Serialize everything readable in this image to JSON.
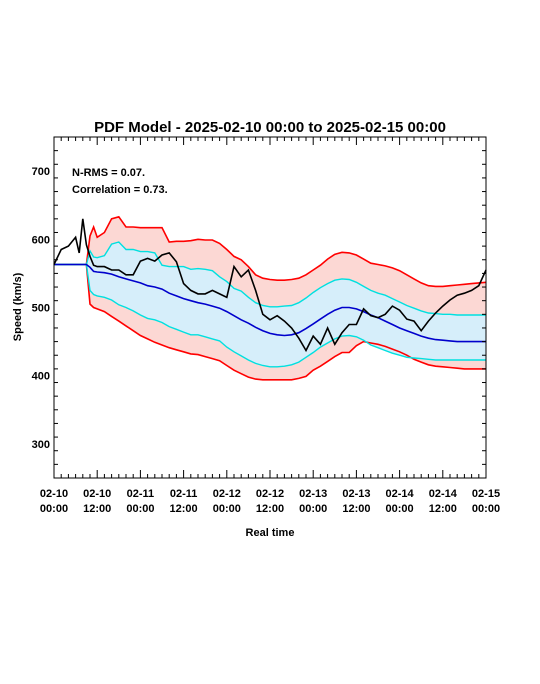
{
  "chart_data": {
    "type": "line",
    "title": "PDF Model - 2025-02-10 00:00 to 2025-02-15 00:00",
    "xlabel": "Real time",
    "ylabel": "Speed (km/s)",
    "annotations": [
      "N-RMS = 0.07.",
      "Correlation = 0.73."
    ],
    "xlim": [
      0,
      120
    ],
    "ylim": [
      250,
      750
    ],
    "y_ticks": [
      300,
      400,
      500,
      600,
      700
    ],
    "x_ticks": [
      {
        "x": 0,
        "line1": "02-10",
        "line2": "00:00"
      },
      {
        "x": 12,
        "line1": "02-10",
        "line2": "12:00"
      },
      {
        "x": 24,
        "line1": "02-11",
        "line2": "00:00"
      },
      {
        "x": 36,
        "line1": "02-11",
        "line2": "12:00"
      },
      {
        "x": 48,
        "line1": "02-12",
        "line2": "00:00"
      },
      {
        "x": 60,
        "line1": "02-12",
        "line2": "12:00"
      },
      {
        "x": 72,
        "line1": "02-13",
        "line2": "00:00"
      },
      {
        "x": 84,
        "line1": "02-13",
        "line2": "12:00"
      },
      {
        "x": 96,
        "line1": "02-14",
        "line2": "00:00"
      },
      {
        "x": 108,
        "line1": "02-14",
        "line2": "12:00"
      },
      {
        "x": 120,
        "line1": "02-15",
        "line2": "00:00"
      }
    ],
    "colors": {
      "outer_band": "#ff0000",
      "outer_fill": "#fcd8d4",
      "inner_band": "#00e0e0",
      "inner_fill": "#d6eefa",
      "median": "#0000cc",
      "observed": "#000000"
    },
    "x": [
      0,
      2,
      4,
      6,
      7,
      8,
      9,
      10,
      11,
      12,
      14,
      16,
      18,
      20,
      22,
      24,
      26,
      28,
      30,
      32,
      34,
      36,
      38,
      40,
      42,
      44,
      46,
      48,
      50,
      52,
      54,
      56,
      58,
      60,
      62,
      64,
      66,
      68,
      70,
      72,
      74,
      76,
      78,
      80,
      82,
      84,
      86,
      88,
      90,
      92,
      94,
      96,
      98,
      100,
      102,
      104,
      106,
      108,
      110,
      112,
      114,
      116,
      118,
      120
    ],
    "series": [
      {
        "role": "outer-upper",
        "values": [
          563,
          563,
          563,
          563,
          563,
          563,
          563,
          605,
          618,
          603,
          610,
          630,
          633,
          618,
          618,
          617,
          617,
          617,
          617,
          596,
          597,
          597,
          598,
          600,
          599,
          599,
          594,
          585,
          575,
          570,
          560,
          548,
          543,
          541,
          540,
          540,
          541,
          543,
          548,
          555,
          562,
          571,
          578,
          581,
          580,
          577,
          571,
          565,
          563,
          561,
          558,
          554,
          548,
          542,
          536,
          532,
          531,
          531,
          532,
          533,
          534,
          535,
          536,
          537
        ]
      },
      {
        "role": "inner-upper",
        "values": [
          563,
          563,
          563,
          563,
          563,
          563,
          563,
          583,
          574,
          573,
          576,
          593,
          596,
          585,
          585,
          582,
          582,
          580,
          562,
          560,
          560,
          560,
          556,
          557,
          556,
          554,
          545,
          538,
          528,
          524,
          515,
          507,
          503,
          501,
          501,
          502,
          503,
          507,
          514,
          522,
          529,
          535,
          540,
          542,
          541,
          537,
          531,
          525,
          521,
          518,
          513,
          508,
          503,
          499,
          495,
          492,
          491,
          490,
          490,
          489,
          489,
          489,
          489,
          489
        ]
      },
      {
        "role": "median",
        "values": [
          563,
          563,
          563,
          563,
          563,
          563,
          563,
          559,
          553,
          552,
          551,
          549,
          545,
          542,
          539,
          536,
          532,
          530,
          527,
          521,
          517,
          513,
          510,
          507,
          505,
          502,
          499,
          494,
          488,
          482,
          477,
          471,
          466,
          462,
          460,
          459,
          460,
          463,
          469,
          476,
          483,
          490,
          496,
          500,
          500,
          498,
          494,
          489,
          485,
          480,
          475,
          470,
          466,
          462,
          458,
          455,
          453,
          452,
          451,
          450,
          450,
          450,
          450,
          450
        ]
      },
      {
        "role": "inner-lower",
        "values": [
          563,
          563,
          563,
          563,
          563,
          563,
          563,
          525,
          519,
          517,
          515,
          511,
          504,
          500,
          495,
          489,
          484,
          482,
          478,
          472,
          468,
          464,
          460,
          460,
          457,
          454,
          451,
          442,
          435,
          429,
          423,
          418,
          415,
          413,
          413,
          414,
          416,
          420,
          427,
          434,
          442,
          448,
          454,
          458,
          459,
          457,
          452,
          445,
          441,
          437,
          433,
          430,
          427,
          426,
          425,
          424,
          423,
          423,
          423,
          423,
          423,
          423,
          423,
          423
        ]
      },
      {
        "role": "outer-lower",
        "values": [
          563,
          563,
          563,
          563,
          563,
          563,
          563,
          505,
          500,
          498,
          494,
          487,
          480,
          473,
          466,
          459,
          454,
          449,
          445,
          441,
          438,
          435,
          432,
          431,
          428,
          425,
          422,
          415,
          408,
          403,
          398,
          395,
          394,
          394,
          394,
          394,
          394,
          396,
          399,
          408,
          414,
          421,
          428,
          434,
          434,
          444,
          450,
          448,
          446,
          443,
          439,
          435,
          430,
          424,
          420,
          416,
          414,
          413,
          412,
          411,
          410,
          410,
          410,
          410
        ]
      },
      {
        "role": "observed",
        "values": [
          563,
          585,
          590,
          603,
          580,
          630,
          592,
          575,
          562,
          560,
          560,
          555,
          555,
          548,
          548,
          568,
          572,
          568,
          577,
          580,
          567,
          535,
          525,
          520,
          520,
          525,
          520,
          515,
          560,
          545,
          555,
          525,
          490,
          482,
          488,
          480,
          470,
          455,
          437,
          458,
          446,
          470,
          446,
          463,
          475,
          475,
          498,
          488,
          485,
          490,
          502,
          496,
          483,
          480,
          466,
          480,
          492,
          502,
          511,
          518,
          521,
          525,
          532,
          555
        ]
      }
    ]
  }
}
